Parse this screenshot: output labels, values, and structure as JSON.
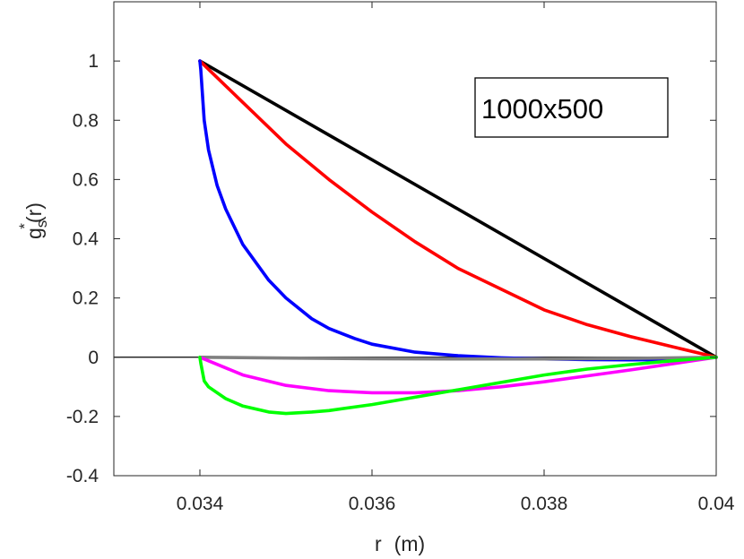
{
  "chart_data": {
    "type": "line",
    "title": "",
    "annotation": "1000x500",
    "xlabel": {
      "var": "r",
      "unit": "(m)"
    },
    "ylabel": {
      "base": "g",
      "sub": "s",
      "sup": "*",
      "tail": "(r)"
    },
    "xlim": [
      0.033,
      0.04
    ],
    "ylim": [
      -0.4,
      1.2
    ],
    "xticks": [
      0.034,
      0.036,
      0.038,
      0.04
    ],
    "xtick_labels": [
      "0.034",
      "0.036",
      "0.038",
      "0.04"
    ],
    "yticks": [
      -0.4,
      -0.2,
      0,
      0.2,
      0.4,
      0.6,
      0.8,
      1
    ],
    "ytick_labels": [
      "-0.4",
      "-0.2",
      "0",
      "0.2",
      "0.4",
      "0.6",
      "0.8",
      "1"
    ],
    "grid": false,
    "series": [
      {
        "color": "#000000",
        "x": [
          0.034,
          0.04
        ],
        "y": [
          1.0,
          0.0
        ]
      },
      {
        "color": "#ff0000",
        "x": [
          0.034,
          0.0345,
          0.035,
          0.0355,
          0.036,
          0.0365,
          0.037,
          0.0375,
          0.038,
          0.0385,
          0.039,
          0.0395,
          0.04
        ],
        "y": [
          1.0,
          0.86,
          0.72,
          0.6,
          0.49,
          0.39,
          0.3,
          0.23,
          0.16,
          0.11,
          0.07,
          0.035,
          0.0
        ]
      },
      {
        "color": "#0000ff",
        "x": [
          0.034,
          0.03401,
          0.03405,
          0.0341,
          0.0342,
          0.0343,
          0.0345,
          0.0348,
          0.035,
          0.0353,
          0.0355,
          0.0358,
          0.036,
          0.0365,
          0.037,
          0.0375,
          0.038,
          0.0385,
          0.039,
          0.0395,
          0.04
        ],
        "y": [
          1.0,
          0.97,
          0.8,
          0.7,
          0.58,
          0.5,
          0.38,
          0.26,
          0.2,
          0.13,
          0.097,
          0.063,
          0.044,
          0.017,
          0.005,
          -0.002,
          -0.006,
          -0.008,
          -0.009,
          -0.008,
          0.0
        ]
      },
      {
        "color": "#808080",
        "x": [
          0.034,
          0.035,
          0.036,
          0.037,
          0.038,
          0.039,
          0.04
        ],
        "y": [
          0.0,
          -0.003,
          -0.005,
          -0.006,
          -0.006,
          -0.004,
          0.0
        ]
      },
      {
        "color": "#ff00ff",
        "x": [
          0.034,
          0.0345,
          0.035,
          0.0355,
          0.036,
          0.0365,
          0.037,
          0.0375,
          0.038,
          0.0385,
          0.039,
          0.0395,
          0.04
        ],
        "y": [
          0.0,
          -0.06,
          -0.095,
          -0.113,
          -0.12,
          -0.12,
          -0.113,
          -0.1,
          -0.083,
          -0.063,
          -0.043,
          -0.022,
          0.0
        ]
      },
      {
        "color": "#00ff00",
        "x": [
          0.034,
          0.03401,
          0.03405,
          0.0341,
          0.0343,
          0.0345,
          0.0348,
          0.035,
          0.0353,
          0.0355,
          0.036,
          0.0365,
          0.037,
          0.0375,
          0.038,
          0.0385,
          0.039,
          0.0395,
          0.04
        ],
        "y": [
          0.0,
          -0.02,
          -0.08,
          -0.1,
          -0.14,
          -0.165,
          -0.185,
          -0.19,
          -0.185,
          -0.18,
          -0.16,
          -0.135,
          -0.11,
          -0.085,
          -0.06,
          -0.04,
          -0.025,
          -0.012,
          0.0
        ]
      }
    ]
  }
}
